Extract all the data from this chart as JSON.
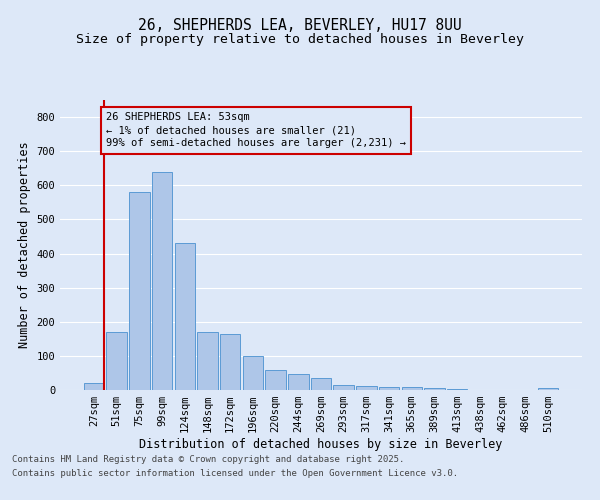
{
  "title_line1": "26, SHEPHERDS LEA, BEVERLEY, HU17 8UU",
  "title_line2": "Size of property relative to detached houses in Beverley",
  "xlabel": "Distribution of detached houses by size in Beverley",
  "ylabel": "Number of detached properties",
  "categories": [
    "27sqm",
    "51sqm",
    "75sqm",
    "99sqm",
    "124sqm",
    "148sqm",
    "172sqm",
    "196sqm",
    "220sqm",
    "244sqm",
    "269sqm",
    "293sqm",
    "317sqm",
    "341sqm",
    "365sqm",
    "389sqm",
    "413sqm",
    "438sqm",
    "462sqm",
    "486sqm",
    "510sqm"
  ],
  "values": [
    21,
    170,
    580,
    640,
    430,
    170,
    165,
    100,
    58,
    48,
    35,
    15,
    12,
    10,
    8,
    5,
    4,
    1,
    1,
    1,
    5
  ],
  "bar_color": "#aec6e8",
  "bar_edge_color": "#5b9bd5",
  "background_color": "#dde8f8",
  "grid_color": "#ffffff",
  "annotation_box_text": "26 SHEPHERDS LEA: 53sqm\n← 1% of detached houses are smaller (21)\n99% of semi-detached houses are larger (2,231) →",
  "annotation_box_color": "#cc0000",
  "ylim": [
    0,
    850
  ],
  "yticks": [
    0,
    100,
    200,
    300,
    400,
    500,
    600,
    700,
    800
  ],
  "footer_line1": "Contains HM Land Registry data © Crown copyright and database right 2025.",
  "footer_line2": "Contains public sector information licensed under the Open Government Licence v3.0.",
  "title_fontsize": 10.5,
  "subtitle_fontsize": 9.5,
  "axis_label_fontsize": 8.5,
  "tick_fontsize": 7.5,
  "annotation_fontsize": 7.5,
  "footer_fontsize": 6.5
}
